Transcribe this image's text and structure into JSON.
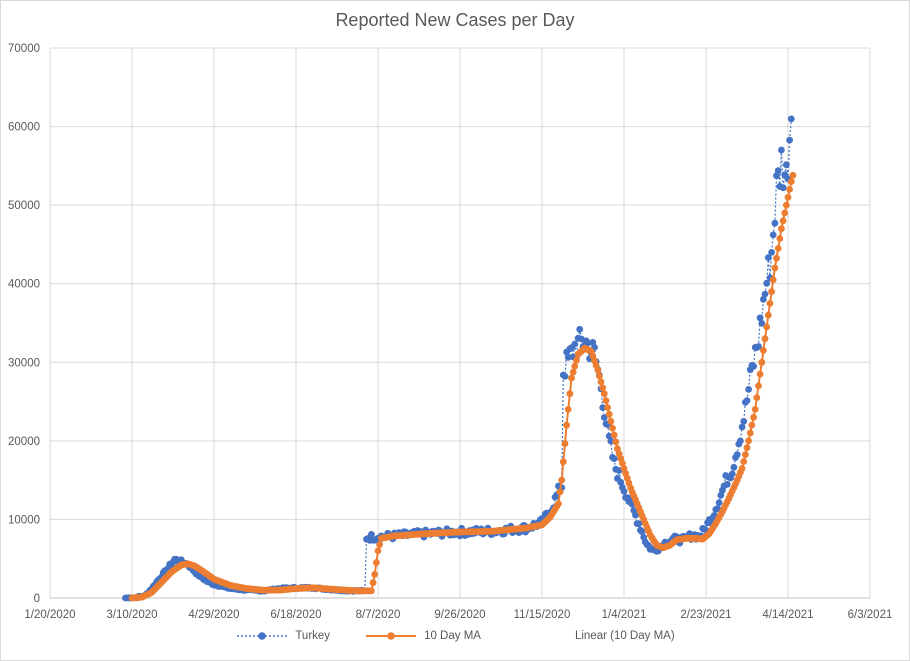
{
  "colors": {
    "turkey": "#4472C4",
    "ma": "#ED7D31",
    "grid": "#d9d9d9",
    "text": "#595959"
  },
  "chart_data": {
    "type": "line",
    "title": "Reported New Cases per Day",
    "xlabel": "",
    "ylabel": "",
    "xlim_days": [
      0,
      500
    ],
    "ylim": [
      0,
      70000
    ],
    "x_ticks": [
      {
        "day": 0,
        "label": "1/20/2020"
      },
      {
        "day": 50,
        "label": "3/10/2020"
      },
      {
        "day": 100,
        "label": "4/29/2020"
      },
      {
        "day": 150,
        "label": "6/18/2020"
      },
      {
        "day": 200,
        "label": "8/7/2020"
      },
      {
        "day": 250,
        "label": "9/26/2020"
      },
      {
        "day": 300,
        "label": "11/15/2020"
      },
      {
        "day": 350,
        "label": "1/4/2021"
      },
      {
        "day": 400,
        "label": "2/23/2021"
      },
      {
        "day": 450,
        "label": "4/14/2021"
      },
      {
        "day": 500,
        "label": "6/3/2021"
      }
    ],
    "y_ticks": [
      {
        "value": 0,
        "label": "0"
      },
      {
        "value": 10000,
        "label": "10000"
      },
      {
        "value": 20000,
        "label": "20000"
      },
      {
        "value": 30000,
        "label": "30000"
      },
      {
        "value": 40000,
        "label": "40000"
      },
      {
        "value": 50000,
        "label": "50000"
      },
      {
        "value": 60000,
        "label": "60000"
      },
      {
        "value": 70000,
        "label": "70000"
      }
    ],
    "series": [
      {
        "name": "Turkey",
        "style": "dotted-line-markers",
        "keypoints": [
          [
            46,
            0
          ],
          [
            52,
            50
          ],
          [
            58,
            300
          ],
          [
            62,
            1200
          ],
          [
            66,
            2300
          ],
          [
            72,
            3800
          ],
          [
            76,
            4900
          ],
          [
            80,
            4600
          ],
          [
            84,
            4300
          ],
          [
            90,
            3000
          ],
          [
            95,
            2200
          ],
          [
            100,
            1700
          ],
          [
            110,
            1200
          ],
          [
            120,
            1000
          ],
          [
            130,
            900
          ],
          [
            140,
            1200
          ],
          [
            150,
            1300
          ],
          [
            160,
            1300
          ],
          [
            170,
            1100
          ],
          [
            180,
            950
          ],
          [
            190,
            900
          ],
          [
            192,
            900
          ],
          [
            193,
            7700
          ],
          [
            210,
            7900
          ],
          [
            230,
            8200
          ],
          [
            250,
            8400
          ],
          [
            270,
            8500
          ],
          [
            290,
            8900
          ],
          [
            300,
            9600
          ],
          [
            305,
            11000
          ],
          [
            310,
            13500
          ],
          [
            312,
            14300
          ],
          [
            313,
            29000
          ],
          [
            316,
            30200
          ],
          [
            320,
            32000
          ],
          [
            326,
            32800
          ],
          [
            332,
            31000
          ],
          [
            336,
            27000
          ],
          [
            340,
            21000
          ],
          [
            344,
            17000
          ],
          [
            348,
            15000
          ],
          [
            352,
            13000
          ],
          [
            356,
            11000
          ],
          [
            360,
            9000
          ],
          [
            364,
            6800
          ],
          [
            368,
            6000
          ],
          [
            372,
            6500
          ],
          [
            376,
            7200
          ],
          [
            380,
            7500
          ],
          [
            386,
            7400
          ],
          [
            392,
            8000
          ],
          [
            396,
            7800
          ],
          [
            400,
            9000
          ],
          [
            404,
            10500
          ],
          [
            408,
            12500
          ],
          [
            412,
            14800
          ],
          [
            416,
            16500
          ],
          [
            420,
            20000
          ],
          [
            424,
            24000
          ],
          [
            428,
            29000
          ],
          [
            432,
            33000
          ],
          [
            436,
            39000
          ],
          [
            440,
            44000
          ],
          [
            443,
            52000
          ],
          [
            446,
            55500
          ],
          [
            449,
            53500
          ],
          [
            451,
            59000
          ],
          [
            452,
            62600
          ]
        ]
      },
      {
        "name": "10 Day MA",
        "style": "solid-line-markers",
        "keypoints": [
          [
            50,
            0
          ],
          [
            56,
            100
          ],
          [
            62,
            700
          ],
          [
            68,
            2000
          ],
          [
            74,
            3300
          ],
          [
            80,
            4200
          ],
          [
            84,
            4350
          ],
          [
            88,
            4100
          ],
          [
            94,
            3300
          ],
          [
            100,
            2400
          ],
          [
            110,
            1600
          ],
          [
            120,
            1200
          ],
          [
            130,
            1000
          ],
          [
            140,
            1000
          ],
          [
            150,
            1200
          ],
          [
            160,
            1300
          ],
          [
            170,
            1150
          ],
          [
            180,
            1000
          ],
          [
            190,
            900
          ],
          [
            196,
            900
          ],
          [
            198,
            3000
          ],
          [
            200,
            6000
          ],
          [
            202,
            7600
          ],
          [
            210,
            7900
          ],
          [
            230,
            8200
          ],
          [
            250,
            8400
          ],
          [
            270,
            8500
          ],
          [
            290,
            8900
          ],
          [
            300,
            9300
          ],
          [
            305,
            10300
          ],
          [
            310,
            12000
          ],
          [
            312,
            15000
          ],
          [
            315,
            22000
          ],
          [
            318,
            28000
          ],
          [
            322,
            31000
          ],
          [
            326,
            31800
          ],
          [
            330,
            31400
          ],
          [
            334,
            29000
          ],
          [
            338,
            26000
          ],
          [
            342,
            22500
          ],
          [
            346,
            19000
          ],
          [
            350,
            16500
          ],
          [
            354,
            14000
          ],
          [
            358,
            12000
          ],
          [
            362,
            10000
          ],
          [
            366,
            8000
          ],
          [
            370,
            6700
          ],
          [
            374,
            6400
          ],
          [
            378,
            6700
          ],
          [
            382,
            7400
          ],
          [
            388,
            7600
          ],
          [
            394,
            7600
          ],
          [
            398,
            7500
          ],
          [
            402,
            8200
          ],
          [
            406,
            9500
          ],
          [
            410,
            11000
          ],
          [
            414,
            12700
          ],
          [
            418,
            14500
          ],
          [
            422,
            16500
          ],
          [
            426,
            20000
          ],
          [
            430,
            24000
          ],
          [
            434,
            30000
          ],
          [
            438,
            36000
          ],
          [
            442,
            42000
          ],
          [
            446,
            47000
          ],
          [
            450,
            51000
          ],
          [
            452,
            53000
          ],
          [
            453,
            53800
          ]
        ]
      },
      {
        "name": "Linear (10 Day MA)",
        "style": "legend-only",
        "keypoints": []
      }
    ]
  }
}
